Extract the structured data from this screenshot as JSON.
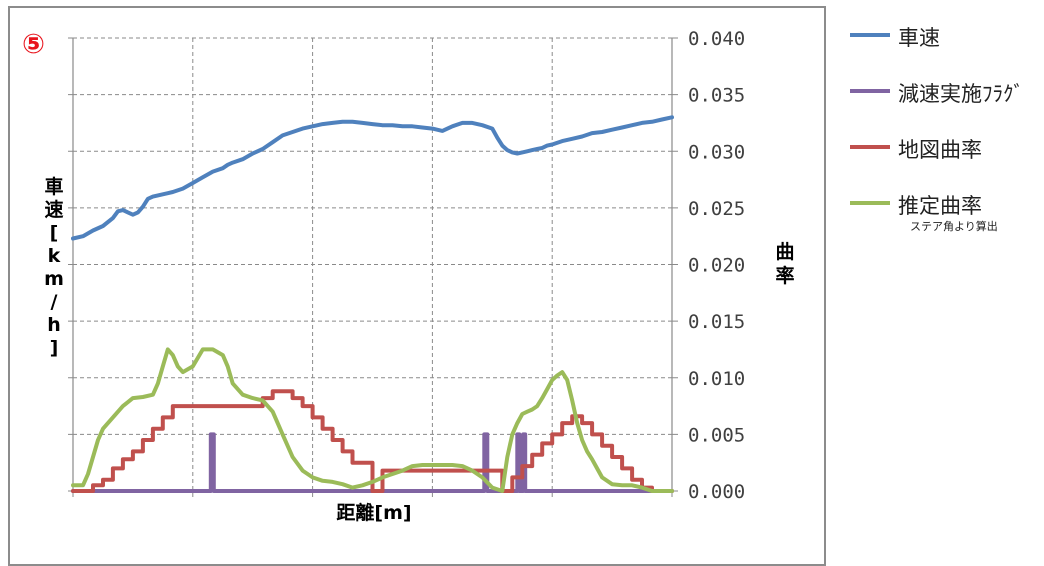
{
  "badge": "⑤",
  "chart_data": {
    "type": "line",
    "xlabel": "距離[m]",
    "ylabel_left": [
      "車",
      "速",
      "[",
      "k",
      "m",
      "/",
      "h",
      "]"
    ],
    "ylabel_right": [
      "曲",
      "率"
    ],
    "x_range": [
      0,
      600
    ],
    "y2lim": [
      0,
      0.04
    ],
    "y2_ticks": [
      "0.000",
      "0.005",
      "0.010",
      "0.015",
      "0.020",
      "0.025",
      "0.030",
      "0.035",
      "0.040"
    ],
    "grid": true,
    "legend_position": "right",
    "series": [
      {
        "name": "車速",
        "color": "#4f81bd",
        "axis": "left",
        "x": [
          0,
          10,
          20,
          30,
          40,
          45,
          50,
          55,
          60,
          65,
          70,
          75,
          80,
          85,
          90,
          95,
          100,
          110,
          120,
          130,
          140,
          150,
          155,
          160,
          170,
          180,
          190,
          200,
          210,
          220,
          230,
          240,
          250,
          260,
          270,
          280,
          290,
          300,
          310,
          320,
          330,
          340,
          350,
          360,
          370,
          380,
          390,
          400,
          410,
          420,
          425,
          430,
          435,
          440,
          445,
          450,
          455,
          460,
          465,
          470,
          475,
          480,
          490,
          500,
          510,
          520,
          530,
          540,
          550,
          560,
          570,
          580,
          590,
          600
        ],
        "values": [
          0.0223,
          0.0225,
          0.023,
          0.0234,
          0.0241,
          0.0247,
          0.0248,
          0.0246,
          0.0244,
          0.0246,
          0.0251,
          0.0258,
          0.026,
          0.0261,
          0.0262,
          0.0263,
          0.0264,
          0.0267,
          0.0272,
          0.0277,
          0.0282,
          0.0285,
          0.0288,
          0.029,
          0.0293,
          0.0298,
          0.0302,
          0.0308,
          0.0314,
          0.0317,
          0.032,
          0.0322,
          0.0324,
          0.0325,
          0.0326,
          0.0326,
          0.0325,
          0.0324,
          0.0323,
          0.0323,
          0.0322,
          0.0322,
          0.0321,
          0.032,
          0.0318,
          0.0322,
          0.0325,
          0.0325,
          0.0323,
          0.032,
          0.0312,
          0.0305,
          0.0301,
          0.0299,
          0.0298,
          0.0299,
          0.03,
          0.0301,
          0.0302,
          0.0303,
          0.0305,
          0.0306,
          0.0309,
          0.0311,
          0.0313,
          0.0316,
          0.0317,
          0.0319,
          0.0321,
          0.0323,
          0.0325,
          0.0326,
          0.0328,
          0.033
        ]
      },
      {
        "name": "減速実施ﾌﾗｸﾞ",
        "color": "#8064a2",
        "axis": "right",
        "x": [
          0,
          138,
          138,
          141,
          141,
          412,
          412,
          415,
          415,
          445,
          445,
          447,
          447,
          451,
          451,
          453,
          453,
          460,
          460,
          600
        ],
        "values": [
          0,
          0,
          0.005,
          0.005,
          0,
          0,
          0.005,
          0.005,
          0,
          0,
          0.005,
          0.005,
          0,
          0,
          0.005,
          0.005,
          0,
          0,
          0,
          0
        ]
      },
      {
        "name": "地図曲率",
        "color": "#c0504d",
        "axis": "right",
        "x": [
          0,
          20,
          20,
          30,
          30,
          40,
          40,
          50,
          50,
          60,
          60,
          70,
          70,
          80,
          80,
          90,
          90,
          100,
          100,
          190,
          190,
          200,
          200,
          210,
          210,
          220,
          220,
          230,
          230,
          240,
          240,
          250,
          250,
          260,
          260,
          270,
          270,
          280,
          280,
          300,
          300,
          310,
          310,
          360,
          360,
          390,
          390,
          400,
          400,
          410,
          410,
          420,
          420,
          430,
          430,
          440,
          440,
          450,
          450,
          460,
          460,
          470,
          470,
          480,
          480,
          490,
          490,
          500,
          500,
          510,
          510,
          520,
          520,
          530,
          530,
          540,
          540,
          550,
          550,
          560,
          560,
          570,
          570,
          580,
          580,
          590,
          590,
          600
        ],
        "values": [
          0,
          0,
          0.0005,
          0.0005,
          0.001,
          0.001,
          0.002,
          0.002,
          0.0028,
          0.0028,
          0.0035,
          0.0035,
          0.0045,
          0.0045,
          0.0055,
          0.0055,
          0.0065,
          0.0065,
          0.0075,
          0.0075,
          0.0082,
          0.0082,
          0.0088,
          0.0088,
          0.0088,
          0.0088,
          0.0082,
          0.0082,
          0.0075,
          0.0075,
          0.0065,
          0.0065,
          0.0055,
          0.0055,
          0.0045,
          0.0045,
          0.0035,
          0.0035,
          0.0025,
          0.0025,
          0.0,
          0.0,
          0.0018,
          0.0018,
          0.0018,
          0.0018,
          0.0018,
          0.0018,
          0.0018,
          0.0018,
          0.0018,
          0.0018,
          0.0018,
          0.0018,
          0.0,
          0.0,
          0.0012,
          0.0012,
          0.0022,
          0.0022,
          0.0032,
          0.0032,
          0.0042,
          0.0042,
          0.005,
          0.005,
          0.006,
          0.006,
          0.0066,
          0.0066,
          0.006,
          0.006,
          0.005,
          0.005,
          0.004,
          0.004,
          0.003,
          0.003,
          0.002,
          0.002,
          0.001,
          0.001,
          0.0003,
          0.0003,
          0,
          0,
          0,
          0
        ]
      },
      {
        "name": "推定曲率",
        "note": "ステア角より算出",
        "color": "#9bbb59",
        "axis": "right",
        "x": [
          0,
          10,
          15,
          20,
          25,
          30,
          40,
          50,
          60,
          70,
          80,
          85,
          90,
          95,
          100,
          105,
          110,
          120,
          130,
          140,
          150,
          155,
          160,
          170,
          180,
          190,
          200,
          210,
          220,
          230,
          240,
          250,
          260,
          270,
          280,
          290,
          300,
          310,
          320,
          330,
          340,
          350,
          360,
          370,
          380,
          390,
          400,
          410,
          420,
          430,
          435,
          440,
          445,
          450,
          455,
          460,
          465,
          470,
          475,
          480,
          485,
          490,
          495,
          500,
          505,
          510,
          515,
          520,
          525,
          530,
          540,
          550,
          560,
          570,
          580,
          590,
          600
        ],
        "values": [
          0.0005,
          0.0005,
          0.0015,
          0.003,
          0.0045,
          0.0055,
          0.0065,
          0.0075,
          0.0082,
          0.0083,
          0.0085,
          0.0095,
          0.011,
          0.0125,
          0.012,
          0.011,
          0.0105,
          0.011,
          0.0125,
          0.0125,
          0.012,
          0.011,
          0.0095,
          0.0085,
          0.0082,
          0.008,
          0.007,
          0.005,
          0.003,
          0.0018,
          0.0012,
          0.0009,
          0.0008,
          0.0006,
          0.0003,
          0.0005,
          0.0008,
          0.0012,
          0.0015,
          0.0018,
          0.0022,
          0.0023,
          0.0023,
          0.0023,
          0.0023,
          0.0022,
          0.0018,
          0.0012,
          0.0003,
          0.0,
          0.003,
          0.005,
          0.006,
          0.0068,
          0.007,
          0.0072,
          0.0075,
          0.0082,
          0.009,
          0.0098,
          0.0102,
          0.0105,
          0.0098,
          0.008,
          0.006,
          0.0045,
          0.0035,
          0.0028,
          0.002,
          0.0012,
          0.0006,
          0.0005,
          0.0005,
          0.0003,
          0.0,
          0,
          0
        ]
      }
    ]
  }
}
